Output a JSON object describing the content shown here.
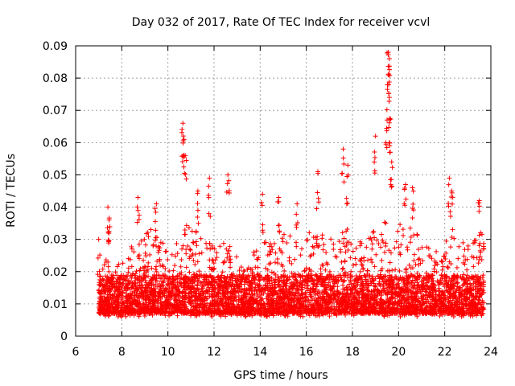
{
  "chart_data": {
    "type": "scatter",
    "title": "Day 032 of 2017, Rate Of TEC Index for receiver vcvl",
    "xlabel": "GPS time / hours",
    "ylabel": "ROTI / TECUs",
    "xlim": [
      6,
      24
    ],
    "ylim": [
      0,
      0.09
    ],
    "xticks": [
      "6",
      "8",
      "10",
      "12",
      "14",
      "16",
      "18",
      "20",
      "22",
      "24"
    ],
    "yticks": [
      "0",
      "0.01",
      "0.02",
      "0.03",
      "0.04",
      "0.05",
      "0.06",
      "0.07",
      "0.08",
      "0.09"
    ],
    "grid": true,
    "marker": "+",
    "color": "#ff0000",
    "series": [
      {
        "name": "ROTI",
        "summary": "Dense cloud of points from ~7.0 to ~23.7 h; bulk between 0.003 and 0.03 TECU, peaks listed below",
        "x_range": [
          7.0,
          23.7
        ],
        "baseline_band": [
          0.004,
          0.025
        ],
        "peaks": [
          {
            "x": 7.0,
            "y": 0.03
          },
          {
            "x": 7.4,
            "y": 0.04
          },
          {
            "x": 7.45,
            "y": 0.036
          },
          {
            "x": 8.7,
            "y": 0.043
          },
          {
            "x": 9.5,
            "y": 0.041
          },
          {
            "x": 10.65,
            "y": 0.066
          },
          {
            "x": 10.7,
            "y": 0.061
          },
          {
            "x": 10.75,
            "y": 0.056
          },
          {
            "x": 11.3,
            "y": 0.045
          },
          {
            "x": 11.8,
            "y": 0.049
          },
          {
            "x": 12.6,
            "y": 0.05
          },
          {
            "x": 14.1,
            "y": 0.044
          },
          {
            "x": 14.8,
            "y": 0.043
          },
          {
            "x": 15.6,
            "y": 0.041
          },
          {
            "x": 16.5,
            "y": 0.051
          },
          {
            "x": 17.6,
            "y": 0.058
          },
          {
            "x": 17.8,
            "y": 0.053
          },
          {
            "x": 19.0,
            "y": 0.062
          },
          {
            "x": 19.55,
            "y": 0.088
          },
          {
            "x": 19.6,
            "y": 0.086
          },
          {
            "x": 19.55,
            "y": 0.081
          },
          {
            "x": 19.6,
            "y": 0.074
          },
          {
            "x": 19.5,
            "y": 0.067
          },
          {
            "x": 19.6,
            "y": 0.06
          },
          {
            "x": 19.7,
            "y": 0.054
          },
          {
            "x": 20.3,
            "y": 0.047
          },
          {
            "x": 20.6,
            "y": 0.046
          },
          {
            "x": 22.2,
            "y": 0.049
          },
          {
            "x": 22.3,
            "y": 0.045
          },
          {
            "x": 23.5,
            "y": 0.042
          }
        ],
        "activity_envelope": [
          {
            "x": 7.0,
            "y": 0.02
          },
          {
            "x": 7.5,
            "y": 0.026
          },
          {
            "x": 8.0,
            "y": 0.022
          },
          {
            "x": 8.7,
            "y": 0.032
          },
          {
            "x": 9.5,
            "y": 0.034
          },
          {
            "x": 10.0,
            "y": 0.028
          },
          {
            "x": 10.7,
            "y": 0.036
          },
          {
            "x": 11.3,
            "y": 0.032
          },
          {
            "x": 12.0,
            "y": 0.028
          },
          {
            "x": 12.6,
            "y": 0.03
          },
          {
            "x": 13.2,
            "y": 0.022
          },
          {
            "x": 14.0,
            "y": 0.03
          },
          {
            "x": 14.8,
            "y": 0.034
          },
          {
            "x": 15.5,
            "y": 0.03
          },
          {
            "x": 16.5,
            "y": 0.034
          },
          {
            "x": 17.0,
            "y": 0.03
          },
          {
            "x": 17.7,
            "y": 0.034
          },
          {
            "x": 18.5,
            "y": 0.03
          },
          {
            "x": 19.5,
            "y": 0.036
          },
          {
            "x": 20.5,
            "y": 0.034
          },
          {
            "x": 21.5,
            "y": 0.026
          },
          {
            "x": 22.3,
            "y": 0.032
          },
          {
            "x": 23.0,
            "y": 0.028
          },
          {
            "x": 23.7,
            "y": 0.034
          }
        ]
      }
    ]
  }
}
